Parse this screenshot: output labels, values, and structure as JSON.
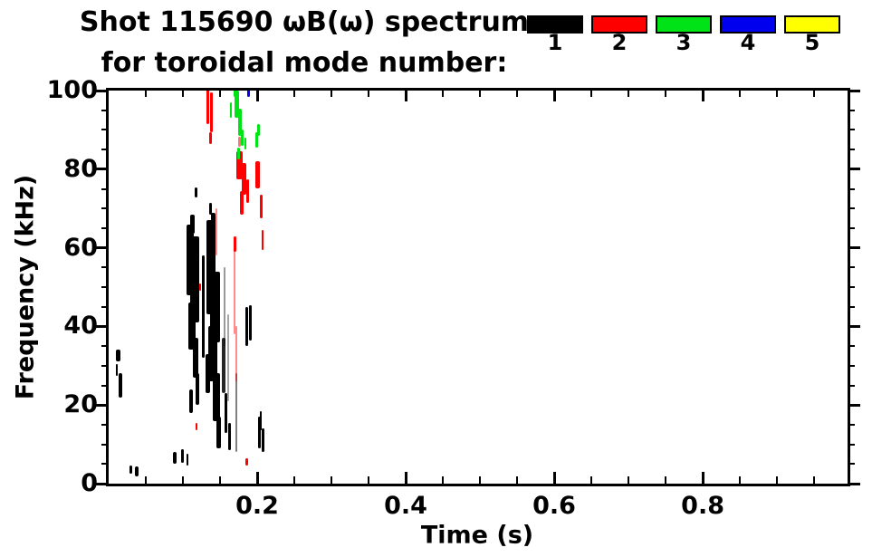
{
  "title": {
    "line1": "Shot 115690 ωB(ω) spectrum",
    "line2": "for toroidal mode number:"
  },
  "legend": {
    "items": [
      {
        "label": "1",
        "color": "#000000"
      },
      {
        "label": "2",
        "color": "#ff0000"
      },
      {
        "label": "3",
        "color": "#00e417"
      },
      {
        "label": "4",
        "color": "#0000ee"
      },
      {
        "label": "5",
        "color": "#ffff00"
      }
    ]
  },
  "chart_data": {
    "type": "scatter",
    "title": "Shot 115690 ωB(ω) spectrum for toroidal mode number:",
    "xlabel": "Time (s)",
    "ylabel": "Frequency (kHz)",
    "xlim": [
      0,
      1.0
    ],
    "ylim": [
      0,
      100
    ],
    "grid": false,
    "legend_position": "top-right",
    "x_major_ticks": [
      0.2,
      0.4,
      0.6,
      0.8
    ],
    "x_tick_labels": [
      "0.2",
      "0.4",
      "0.6",
      "0.8"
    ],
    "x_minor_step": 0.05,
    "y_major_ticks": [
      0,
      20,
      40,
      60,
      80,
      100
    ],
    "y_tick_labels": [
      "0",
      "20",
      "40",
      "60",
      "80",
      "100"
    ],
    "y_minor_step": 5,
    "series": [
      {
        "name": "1",
        "color": "#000000",
        "points": [
          [
            0.11,
            57,
            0.01,
            18
          ],
          [
            0.116,
            52,
            0.012,
            22
          ],
          [
            0.112,
            40,
            0.01,
            12
          ],
          [
            0.117,
            32,
            0.008,
            10
          ],
          [
            0.113,
            66,
            0.006,
            5
          ],
          [
            0.12,
            24,
            0.005,
            8
          ],
          [
            0.111,
            21,
            0.004,
            6
          ],
          [
            0.118,
            74,
            0.004,
            2.5
          ],
          [
            0.138,
            55,
            0.013,
            24
          ],
          [
            0.143,
            45,
            0.014,
            18
          ],
          [
            0.14,
            33,
            0.012,
            14
          ],
          [
            0.145,
            22,
            0.01,
            12
          ],
          [
            0.141,
            66,
            0.007,
            6
          ],
          [
            0.148,
            13,
            0.007,
            8
          ],
          [
            0.137,
            70,
            0.004,
            3
          ],
          [
            0.133,
            28,
            0.006,
            10
          ],
          [
            0.127,
            45,
            0.004,
            26
          ],
          [
            0.155,
            30,
            0.005,
            14,
            0.85
          ],
          [
            0.158,
            18,
            0.004,
            10
          ],
          [
            0.163,
            12,
            0.004,
            7
          ],
          [
            0.172,
            18,
            0.003,
            20,
            0.5
          ],
          [
            0.156,
            45,
            0.003,
            20,
            0.4
          ],
          [
            0.161,
            32,
            0.003,
            22,
            0.35
          ],
          [
            0.186,
            40,
            0.003,
            10
          ],
          [
            0.191,
            41,
            0.003,
            9
          ],
          [
            0.203,
            13,
            0.0035,
            8
          ],
          [
            0.208,
            11,
            0.003,
            6
          ],
          [
            0.205,
            16,
            0.0025,
            5
          ],
          [
            0.013,
            32.5,
            0.006,
            3
          ],
          [
            0.016,
            25,
            0.005,
            6
          ],
          [
            0.011,
            29,
            0.003,
            3
          ],
          [
            0.03,
            3.5,
            0.004,
            2
          ],
          [
            0.038,
            3.2,
            0.005,
            2.5
          ],
          [
            0.089,
            6.5,
            0.005,
            3
          ],
          [
            0.099,
            7,
            0.004,
            3.5
          ],
          [
            0.106,
            6,
            0.003,
            3
          ]
        ]
      },
      {
        "name": "2",
        "color": "#ff0000",
        "points": [
          [
            0.134,
            96,
            0.0035,
            9
          ],
          [
            0.1385,
            94.5,
            0.003,
            10
          ],
          [
            0.137,
            88,
            0.003,
            3
          ],
          [
            0.176,
            81,
            0.008,
            7
          ],
          [
            0.182,
            77.5,
            0.006,
            8
          ],
          [
            0.179,
            71.5,
            0.005,
            6
          ],
          [
            0.187,
            74.5,
            0.004,
            6
          ],
          [
            0.201,
            78.5,
            0.006,
            7
          ],
          [
            0.205,
            70.5,
            0.0035,
            6
          ],
          [
            0.2075,
            62,
            0.003,
            5
          ],
          [
            0.17,
            61,
            0.003,
            4
          ],
          [
            0.176,
            87,
            0.004,
            2.5,
            0.55
          ],
          [
            0.145,
            64,
            0.0025,
            12,
            0.45
          ],
          [
            0.17,
            50,
            0.0025,
            24,
            0.45
          ],
          [
            0.172,
            33,
            0.0025,
            14,
            0.45
          ],
          [
            0.118,
            14.6,
            0.003,
            1.8
          ],
          [
            0.123,
            50,
            0.0025,
            2
          ],
          [
            0.186,
            5.5,
            0.004,
            2
          ]
        ]
      },
      {
        "name": "3",
        "color": "#00e417",
        "points": [
          [
            0.172,
            96.5,
            0.006,
            7
          ],
          [
            0.177,
            92,
            0.005,
            7
          ],
          [
            0.18,
            88,
            0.004,
            4
          ],
          [
            0.17,
            99.5,
            0.003,
            2
          ],
          [
            0.184,
            86.5,
            0.003,
            3
          ],
          [
            0.199,
            87.5,
            0.004,
            4
          ],
          [
            0.165,
            95,
            0.002,
            4
          ],
          [
            0.175,
            84,
            0.003,
            3
          ],
          [
            0.202,
            90,
            0.003,
            3
          ]
        ]
      },
      {
        "name": "4",
        "color": "#0000ee",
        "points": [
          [
            0.188,
            99.3,
            0.004,
            1.8
          ]
        ]
      },
      {
        "name": "5",
        "color": "#ffff00",
        "points": []
      }
    ]
  }
}
